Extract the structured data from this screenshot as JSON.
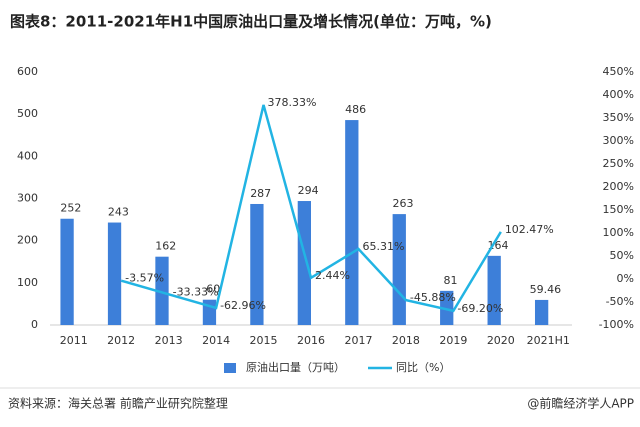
{
  "chart_data": {
    "type": "bar",
    "title": "图表8：2011-2021年H1中国原油出口量及增长情况(单位：万吨，%)",
    "categories": [
      "2011",
      "2012",
      "2013",
      "2014",
      "2015",
      "2016",
      "2017",
      "2018",
      "2019",
      "2020",
      "2021H1"
    ],
    "series": [
      {
        "name": "原油出口量（万吨）",
        "type": "bar",
        "color": "#3d7fd9",
        "values": [
          252,
          243,
          162,
          60,
          287,
          294,
          486,
          263,
          81,
          164,
          59.46
        ]
      },
      {
        "name": "同比（%）",
        "type": "line",
        "axis": "y2",
        "color": "#22b4e3",
        "values": [
          null,
          -3.57,
          -33.33,
          -62.96,
          378.33,
          2.44,
          65.31,
          -45.88,
          -69.2,
          102.47,
          null
        ],
        "value_labels": [
          null,
          "-3.57%",
          "-33.33%",
          "-62.96%",
          "378.33%",
          "2.44%",
          "65.31%",
          "-45.88%",
          "-69.20%",
          "102.47%",
          null
        ]
      }
    ],
    "ylim": [
      0,
      600
    ],
    "yticks": [
      0,
      100,
      200,
      300,
      400,
      500,
      600
    ],
    "y2lim": [
      -100,
      450
    ],
    "y2ticks": [
      {
        "value": -100,
        "label": "-100%"
      },
      {
        "value": -50,
        "label": "-50%"
      },
      {
        "value": 0,
        "label": "0%"
      },
      {
        "value": 50,
        "label": "50%"
      },
      {
        "value": 100,
        "label": "100%"
      },
      {
        "value": 150,
        "label": "150%"
      },
      {
        "value": 200,
        "label": "200%"
      },
      {
        "value": 250,
        "label": "250%"
      },
      {
        "value": 300,
        "label": "300%"
      },
      {
        "value": 350,
        "label": "350%"
      },
      {
        "value": 400,
        "label": "400%"
      },
      {
        "value": 450,
        "label": "450%"
      }
    ],
    "grid": false,
    "source": "资料来源：海关总署 前瞻产业研究院整理",
    "credit": "@前瞻经济学人APP"
  }
}
